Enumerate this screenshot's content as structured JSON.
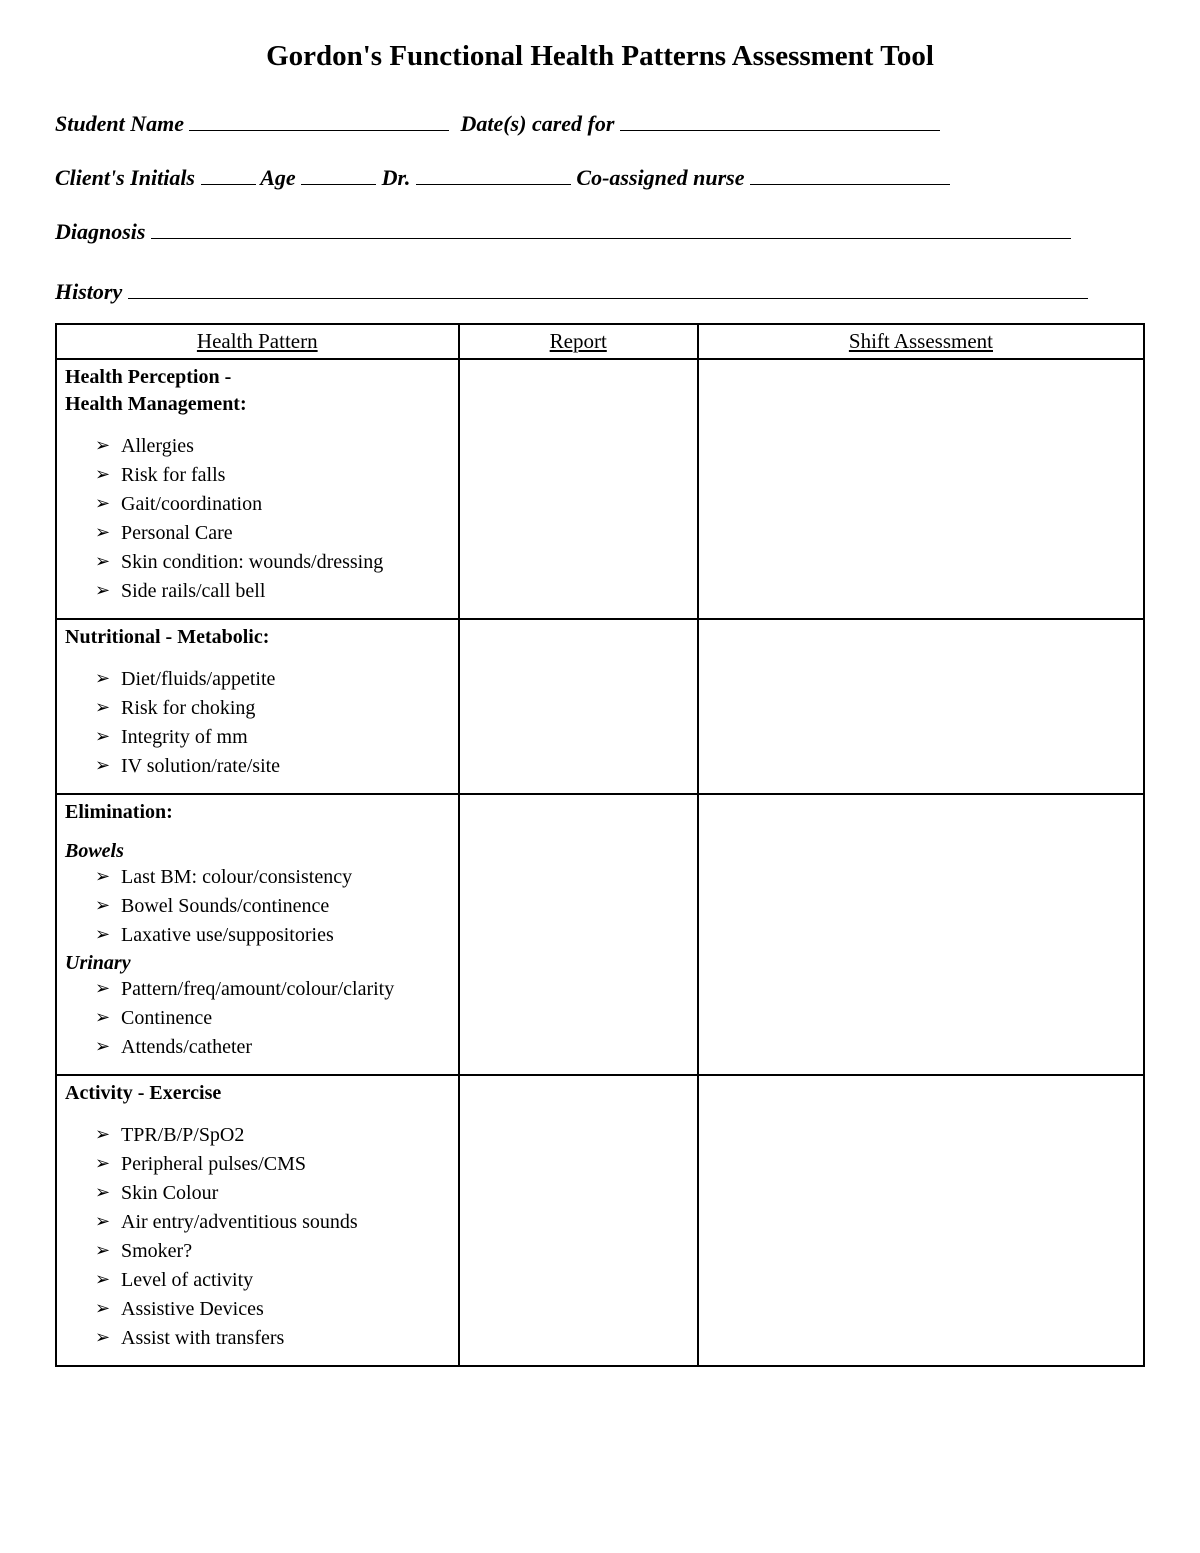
{
  "title": "Gordon's Functional Health Patterns Assessment Tool",
  "fields": {
    "student_name": "Student Name",
    "dates_cared": "Date(s) cared for",
    "client_initials": "Client's Initials",
    "age": "Age",
    "dr": "Dr.",
    "co_nurse": "Co-assigned nurse",
    "diagnosis": "Diagnosis",
    "history": "History"
  },
  "columns": {
    "health_pattern": "Health Pattern",
    "report": "Report",
    "shift_assessment": "Shift Assessment"
  },
  "sections": [
    {
      "title": "Health Perception -\nHealth Management:",
      "groups": [
        {
          "items": [
            "Allergies",
            "Risk for falls",
            "Gait/coordination",
            "Personal Care",
            "Skin condition: wounds/dressing",
            "Side rails/call bell"
          ]
        }
      ]
    },
    {
      "title": "Nutritional - Metabolic:",
      "groups": [
        {
          "items": [
            "Diet/fluids/appetite",
            "Risk for choking",
            "Integrity of mm",
            "IV solution/rate/site"
          ]
        }
      ]
    },
    {
      "title": "Elimination:",
      "groups": [
        {
          "subtitle": "Bowels",
          "items": [
            "Last BM: colour/consistency",
            "Bowel Sounds/continence",
            "Laxative use/suppositories"
          ]
        },
        {
          "subtitle": "Urinary",
          "items": [
            "Pattern/freq/amount/colour/clarity",
            "Continence",
            "Attends/catheter"
          ]
        }
      ]
    },
    {
      "title": "Activity - Exercise",
      "groups": [
        {
          "items": [
            "TPR/B/P/SpO2",
            "Peripheral pulses/CMS",
            "Skin Colour",
            "Air entry/adventitious sounds",
            "Smoker?",
            "Level of activity",
            "Assistive Devices",
            "Assist with transfers"
          ]
        }
      ]
    }
  ]
}
